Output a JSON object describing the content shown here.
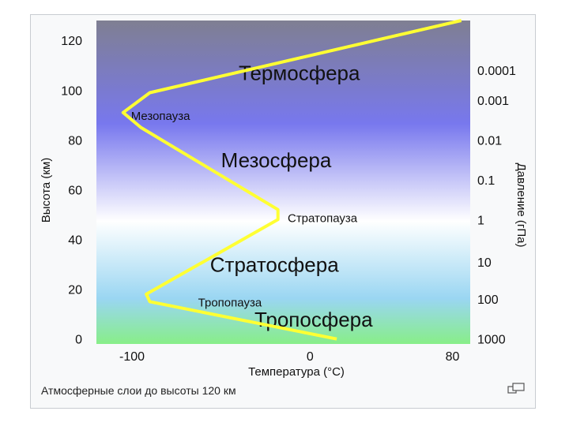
{
  "caption": "Атмосферные слои до высоты 120 км",
  "colors": {
    "curve": "#ffff33",
    "sky_top": "#7f7f92",
    "sky_mid": "#7878ee",
    "sky_white": "#ffffff",
    "sky_low": "#9ad6f2",
    "ground": "#88ee88"
  },
  "icons": {
    "enlarge": "enlarge-icon"
  },
  "chart_data": {
    "type": "line",
    "xlabel": "Температура (°C)",
    "ylabel": "Высота (км)",
    "y2label": "Давление (гПа)",
    "xlim": [
      -120,
      90
    ],
    "ylim": [
      -2,
      128
    ],
    "x_ticks": [
      -100,
      0,
      80
    ],
    "x_tick_labels": [
      "-100",
      "0",
      "80"
    ],
    "y_ticks": [
      0,
      20,
      40,
      60,
      80,
      100,
      120
    ],
    "y_tick_labels": [
      "0",
      "20",
      "40",
      "60",
      "80",
      "100",
      "120"
    ],
    "pressure_ticks": [
      {
        "label": "1000",
        "alt": 0
      },
      {
        "label": "100",
        "alt": 16
      },
      {
        "label": "10",
        "alt": 31
      },
      {
        "label": "1",
        "alt": 48
      },
      {
        "label": "0.1",
        "alt": 64
      },
      {
        "label": "0.01",
        "alt": 80
      },
      {
        "label": "0.001",
        "alt": 96
      },
      {
        "label": "0.0001",
        "alt": 108
      }
    ],
    "series": [
      {
        "x": [
          15,
          -90,
          -92,
          -18,
          -18,
          -95,
          -105,
          -90,
          85
        ],
        "y": [
          0,
          15,
          18,
          48,
          52,
          85,
          91,
          99,
          128
        ]
      }
    ],
    "layers": [
      {
        "label": "Термосфера",
        "x": -6,
        "y": 104,
        "size": "large"
      },
      {
        "label": "Мезопауза",
        "x": -84,
        "y": 88,
        "size": "small"
      },
      {
        "label": "Мезосфера",
        "x": -19,
        "y": 69,
        "size": "large"
      },
      {
        "label": "Стратопауза",
        "x": 7,
        "y": 47,
        "size": "small"
      },
      {
        "label": "Стратосфера",
        "x": -20,
        "y": 27,
        "size": "large"
      },
      {
        "label": "Тропопауза",
        "x": -45,
        "y": 13,
        "size": "small"
      },
      {
        "label": "Тропосфера",
        "x": 2,
        "y": 5,
        "size": "large"
      }
    ]
  }
}
